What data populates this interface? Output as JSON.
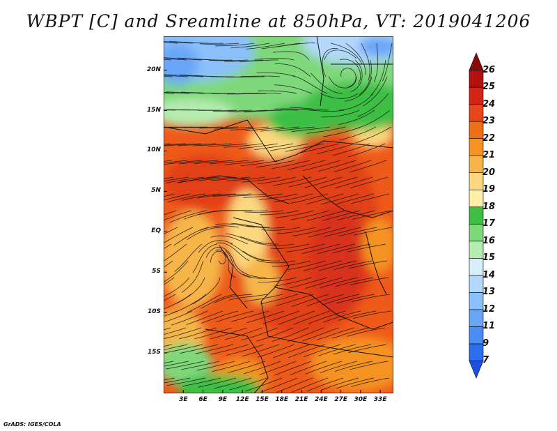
{
  "title": "WBPT [C] and Sreamline at 850hPa, VT: 2019041206",
  "credit": "GrADS: IGES/COLA",
  "lat_labels": [
    "20N",
    "15N",
    "10N",
    "5N",
    "EQ",
    "5S",
    "10S",
    "15S"
  ],
  "lat_values": [
    20,
    15,
    10,
    5,
    0,
    -5,
    -10,
    -15
  ],
  "lon_labels": [
    "3E",
    "6E",
    "9E",
    "12E",
    "15E",
    "18E",
    "21E",
    "24E",
    "27E",
    "30E",
    "33E"
  ],
  "lon_values": [
    3,
    6,
    9,
    12,
    15,
    18,
    21,
    24,
    27,
    30,
    33
  ],
  "colorbar": {
    "levels": [
      "7",
      "9",
      "11",
      "12",
      "13",
      "14",
      "15",
      "16",
      "17",
      "18",
      "19",
      "20",
      "21",
      "22",
      "23",
      "24",
      "25",
      "26"
    ],
    "colors": [
      "#1e50e0",
      "#2d6ef0",
      "#4a8ef5",
      "#6aa6f7",
      "#8cc0fa",
      "#b4d8fc",
      "#d8eefb",
      "#b6ecb0",
      "#7fd87a",
      "#3ebf44",
      "#fff0a8",
      "#fbd87f",
      "#f6b54a",
      "#f59323",
      "#f06e18",
      "#e9451a",
      "#d42416",
      "#b50f0f",
      "#8a0a0a"
    ]
  }
}
